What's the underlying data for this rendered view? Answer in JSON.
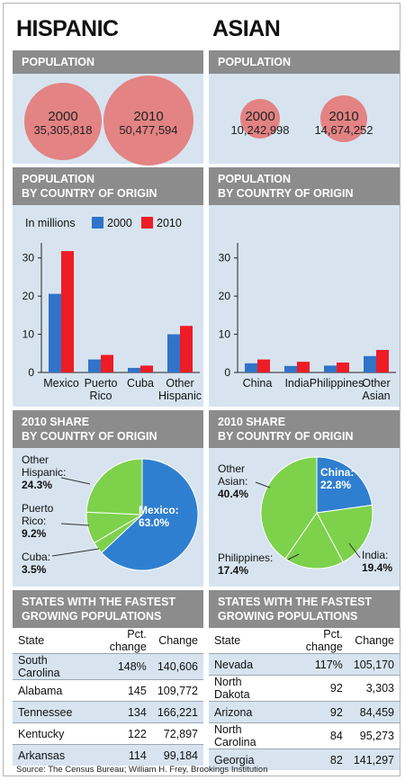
{
  "groups": [
    {
      "id": "hispanic",
      "title": "HISPANIC",
      "population_header": "POPULATION",
      "population": [
        {
          "year": "2000",
          "value": "35,305,818",
          "num": 35305818
        },
        {
          "year": "2010",
          "value": "50,477,594",
          "num": 50477594
        }
      ],
      "origin_header": [
        "POPULATION",
        "BY COUNTRY OF ORIGIN"
      ],
      "share_header": [
        "2010 SHARE",
        "BY COUNTRY OF ORIGIN"
      ],
      "states_header": [
        "STATES WITH THE FASTEST",
        "GROWING POPULATIONS"
      ],
      "table_headers": [
        "State",
        "Pct. change",
        "Change"
      ],
      "states": [
        {
          "state": "South Carolina",
          "pct": "148%",
          "change": "140,606"
        },
        {
          "state": "Alabama",
          "pct": "145",
          "change": "109,772"
        },
        {
          "state": "Tennessee",
          "pct": "134",
          "change": "166,221"
        },
        {
          "state": "Kentucky",
          "pct": "122",
          "change": "72,897"
        },
        {
          "state": "Arkansas",
          "pct": "114",
          "change": "99,184"
        }
      ]
    },
    {
      "id": "asian",
      "title": "ASIAN",
      "population_header": "POPULATION",
      "population": [
        {
          "year": "2000",
          "value": "10,242,998",
          "num": 10242998
        },
        {
          "year": "2010",
          "value": "14,674,252",
          "num": 14674252
        }
      ],
      "origin_header": [
        "POPULATION",
        "BY COUNTRY OF ORIGIN"
      ],
      "share_header": [
        "2010 SHARE",
        "BY COUNTRY OF ORIGIN"
      ],
      "states_header": [
        "STATES WITH THE FASTEST",
        "GROWING POPULATIONS"
      ],
      "table_headers": [
        "State",
        "Pct. change",
        "Change"
      ],
      "states": [
        {
          "state": "Nevada",
          "pct": "117%",
          "change": "105,170"
        },
        {
          "state": "North Dakota",
          "pct": "92",
          "change": "3,303"
        },
        {
          "state": "Arizona",
          "pct": "92",
          "change": "84,459"
        },
        {
          "state": "North Carolina",
          "pct": "84",
          "change": "95,273"
        },
        {
          "state": "Georgia",
          "pct": "82",
          "change": "141,297"
        }
      ]
    }
  ],
  "legend": {
    "unit": "In millions",
    "series": [
      "2000",
      "2010"
    ]
  },
  "colors": {
    "bar_2000": "#2f74c9",
    "bar_2010": "#ee1c25",
    "pie_main": "#2f7fd0",
    "pie_other": "#7dd14b",
    "circle": "#e38383",
    "band": "#d7e4f0",
    "header": "#8c8c8c"
  },
  "source": "Source: The Census Bureau; William H. Frey, Brookings Institution",
  "chart_data": [
    {
      "type": "bar",
      "group": "hispanic",
      "categories": [
        "Mexico",
        "Puerto Rico",
        "Cuba",
        "Other Hispanic"
      ],
      "category_lines": [
        [
          "Mexico"
        ],
        [
          "Puerto",
          "Rico"
        ],
        [
          "Cuba"
        ],
        [
          "Other",
          "Hispanic"
        ]
      ],
      "series": [
        {
          "name": "2000",
          "values": [
            20.6,
            3.4,
            1.2,
            10.0
          ]
        },
        {
          "name": "2010",
          "values": [
            31.8,
            4.6,
            1.8,
            12.2
          ]
        }
      ],
      "yticks": [
        0,
        10,
        20,
        30
      ],
      "ylim": [
        0,
        33
      ],
      "legend": "top"
    },
    {
      "type": "bar",
      "group": "asian",
      "categories": [
        "China",
        "India",
        "Philippines",
        "Other Asian"
      ],
      "category_lines": [
        [
          "China"
        ],
        [
          "India"
        ],
        [
          "Philippines"
        ],
        [
          "Other",
          "Asian"
        ]
      ],
      "series": [
        {
          "name": "2000",
          "values": [
            2.4,
            1.7,
            1.8,
            4.3
          ]
        },
        {
          "name": "2010",
          "values": [
            3.4,
            2.8,
            2.6,
            5.9
          ]
        }
      ],
      "yticks": [
        0,
        10,
        20,
        30
      ],
      "ylim": [
        0,
        33
      ]
    },
    {
      "type": "pie",
      "group": "hispanic",
      "slices": [
        {
          "label": "Mexico",
          "value": 63.0,
          "text": "63.0%",
          "color": "#2f7fd0"
        },
        {
          "label": "Cuba",
          "value": 3.5,
          "text": "3.5%",
          "color": "#7dd14b"
        },
        {
          "label": "Puerto Rico",
          "value": 9.2,
          "text": "9.2%",
          "color": "#7dd14b"
        },
        {
          "label": "Other Hispanic",
          "value": 24.3,
          "text": "24.3%",
          "color": "#7dd14b"
        }
      ]
    },
    {
      "type": "pie",
      "group": "asian",
      "slices": [
        {
          "label": "China",
          "value": 22.8,
          "text": "22.8%",
          "color": "#2f7fd0"
        },
        {
          "label": "India",
          "value": 19.4,
          "text": "19.4%",
          "color": "#7dd14b"
        },
        {
          "label": "Philippines",
          "value": 17.4,
          "text": "17.4%",
          "color": "#7dd14b"
        },
        {
          "label": "Other Asian",
          "value": 40.4,
          "text": "40.4%",
          "color": "#7dd14b"
        }
      ]
    }
  ]
}
